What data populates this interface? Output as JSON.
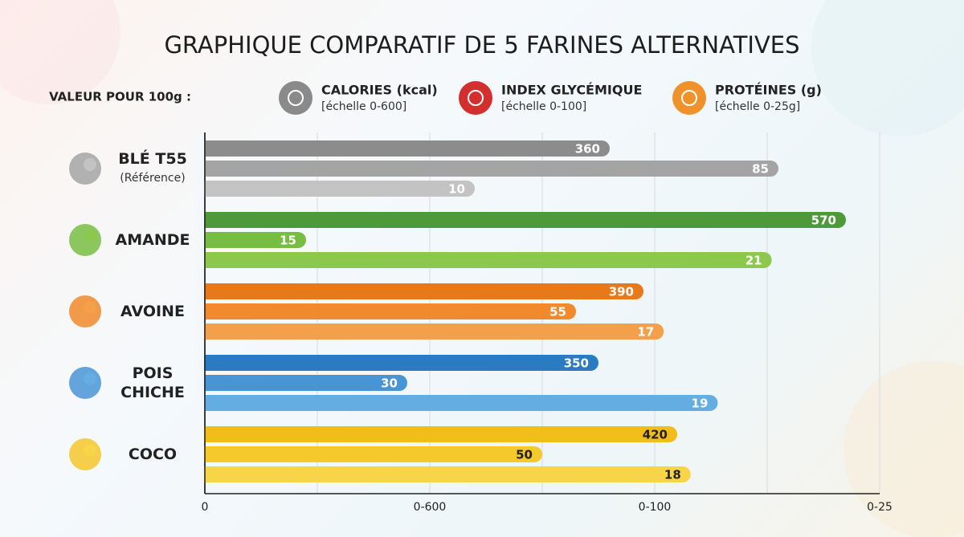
{
  "chart_data": {
    "type": "bar",
    "orientation": "horizontal",
    "title": "GRAPHIQUE COMPARATIF DE 5 FARINES ALTERNATIVES",
    "legend_label": "VALEUR POUR 100g :",
    "categories": [
      "BLÉ T55",
      "AMANDE",
      "AVOINE",
      "POIS CHICHE",
      "COCO"
    ],
    "reference_note": "(Référence)",
    "category_colors": [
      [
        "#8c8c8c",
        "#a4a4a4",
        "#c3c3c3"
      ],
      [
        "#4e9a3b",
        "#78bd43",
        "#8bc84c"
      ],
      [
        "#e8791b",
        "#f08a2c",
        "#f4a04a"
      ],
      [
        "#2b7bc3",
        "#4895d5",
        "#63ade2"
      ],
      [
        "#f2bd1a",
        "#f5c82c",
        "#f7d448"
      ]
    ],
    "series": [
      {
        "name": "CALORIES (kcal)",
        "scale_label": "[échelle 0-600]",
        "color": "#8a8a8a",
        "xlim": [
          0,
          600
        ],
        "values": [
          360,
          570,
          390,
          350,
          420
        ]
      },
      {
        "name": "INDEX GLYCÉMIQUE",
        "scale_label": "[échelle 0-100]",
        "color": "#d32f2f",
        "xlim": [
          0,
          100
        ],
        "values": [
          85,
          15,
          55,
          30,
          50
        ]
      },
      {
        "name": "PROTÉINES (g)",
        "scale_label": "[échelle 0-25g]",
        "color": "#f0922b",
        "xlim": [
          0,
          25
        ],
        "values": [
          10,
          21,
          17,
          19,
          18
        ]
      }
    ],
    "xtick_labels": [
      "0",
      "0-600",
      "0-100",
      "0-25"
    ],
    "grid": true
  }
}
